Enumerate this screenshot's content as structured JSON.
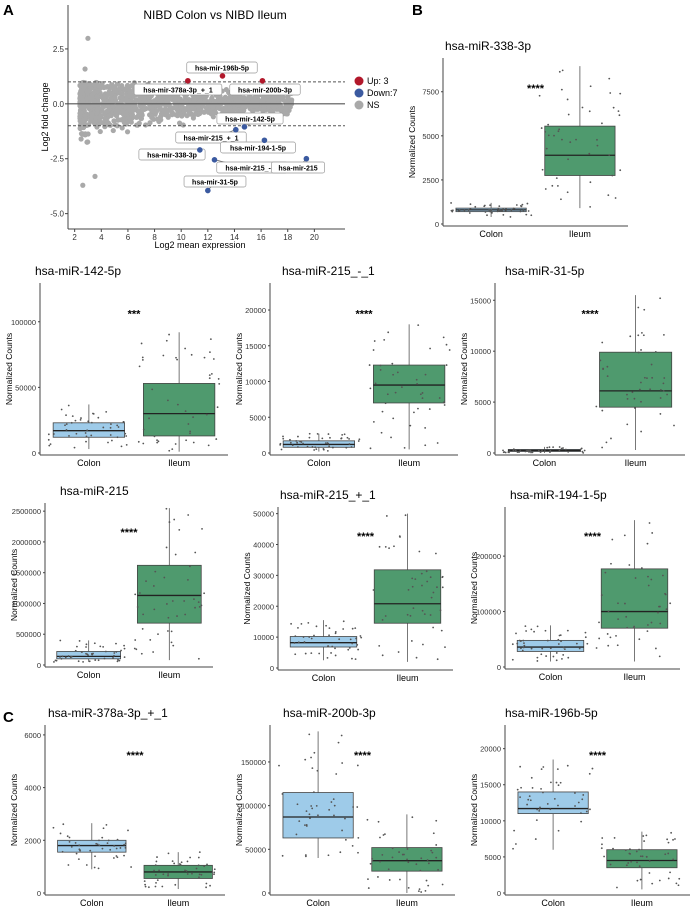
{
  "panel_letters": {
    "a": "A",
    "b": "B",
    "c": "C"
  },
  "colors": {
    "up": "#b2182b",
    "down": "#3b5aa0",
    "ns": "#a9a9a9",
    "colon_box": "#9ecbe9",
    "ileum_box": "#4f9a6e"
  },
  "chart_data": [
    {
      "type": "scatter",
      "title": "NIBD Colon vs NIBD Ileum",
      "xlabel": "Log2 mean expression",
      "ylabel": "Log2 fold change",
      "xlim": [
        1.5,
        22.3
      ],
      "ylim": [
        -5.7,
        4.5
      ],
      "xticks": [
        "2",
        "4",
        "6",
        "8",
        "10",
        "12",
        "14",
        "16",
        "18",
        "20"
      ],
      "yticks": [
        "2.5",
        "0.0",
        "-2.5",
        "-5.0"
      ],
      "threshold_lines": [
        1,
        -1
      ],
      "grid": false,
      "legend_position": "right",
      "legend": [
        {
          "label": "Up: 3",
          "color_key": "up"
        },
        {
          "label": "Down:7",
          "color_key": "down"
        },
        {
          "label": "NS",
          "color_key": "ns"
        }
      ],
      "significant_points": [
        {
          "label": "hsa-mir-378a-3p_+_1",
          "x": 10.5,
          "y": 1.05,
          "status": "up"
        },
        {
          "label": "hsa-mir-196b-5p",
          "x": 13.1,
          "y": 1.27,
          "status": "up"
        },
        {
          "label": "hsa-mir-200b-3p",
          "x": 16.1,
          "y": 1.05,
          "status": "up"
        },
        {
          "label": "hsa-mir-142-5p",
          "x": 14.75,
          "y": -1.05,
          "status": "down"
        },
        {
          "label": "hsa-mir-215_+_1",
          "x": 14.1,
          "y": -1.18,
          "status": "down"
        },
        {
          "label": "hsa-mir-194-1-5p",
          "x": 16.25,
          "y": -1.66,
          "status": "down"
        },
        {
          "label": "hsa-mir-338-3p",
          "x": 11.4,
          "y": -2.1,
          "status": "down"
        },
        {
          "label": "hsa-mir-215_-_1",
          "x": 12.5,
          "y": -2.55,
          "status": "down"
        },
        {
          "label": "hsa-mir-215",
          "x": 19.4,
          "y": -2.5,
          "status": "down"
        },
        {
          "label": "hsa-mir-31-5p",
          "x": 12.0,
          "y": -3.95,
          "status": "down"
        }
      ]
    },
    {
      "type": "box",
      "title": "hsa-miR-338-3p",
      "ylabel": "Normalized Counts",
      "categories": [
        "Colon",
        "Ileum"
      ],
      "ylim": [
        0,
        9300
      ],
      "yticks": [
        0,
        2500,
        5000,
        7500
      ],
      "significance": "****",
      "boxes": [
        {
          "q1": 700,
          "median": 800,
          "q3": 900,
          "low": 400,
          "high": 1200
        },
        {
          "q1": 2750,
          "median": 3900,
          "q3": 5550,
          "low": 900,
          "high": 8950
        }
      ]
    },
    {
      "type": "box",
      "title": "hsa-miR-142-5p",
      "ylabel": "Normalized Counts",
      "categories": [
        "Colon",
        "Ileum"
      ],
      "ylim": [
        0,
        128000
      ],
      "yticks": [
        0,
        50000,
        100000
      ],
      "significance": "***",
      "boxes": [
        {
          "q1": 12000,
          "median": 17000,
          "q3": 23000,
          "low": 3000,
          "high": 37000
        },
        {
          "q1": 13000,
          "median": 30000,
          "q3": 53000,
          "low": 1000,
          "high": 92000
        }
      ]
    },
    {
      "type": "box",
      "title": "hsa-miR-215_-_1",
      "ylabel": "Normalized Counts",
      "categories": [
        "Colon",
        "Ileum"
      ],
      "ylim": [
        0,
        23500
      ],
      "yticks": [
        0,
        5000,
        10000,
        15000,
        20000
      ],
      "significance": "****",
      "boxes": [
        {
          "q1": 800,
          "median": 1200,
          "q3": 1700,
          "low": 200,
          "high": 2700
        },
        {
          "q1": 7000,
          "median": 9500,
          "q3": 12300,
          "low": 500,
          "high": 18000
        }
      ]
    },
    {
      "type": "box",
      "title": "hsa-miR-31-5p",
      "ylabel": "Normalized Counts",
      "categories": [
        "Colon",
        "Ileum"
      ],
      "ylim": [
        0,
        16500
      ],
      "yticks": [
        0,
        5000,
        10000,
        15000
      ],
      "significance": "****",
      "boxes": [
        {
          "q1": 150,
          "median": 250,
          "q3": 350,
          "low": 0,
          "high": 600
        },
        {
          "q1": 4500,
          "median": 6100,
          "q3": 9900,
          "low": 300,
          "high": 15500
        }
      ]
    },
    {
      "type": "box",
      "title": "hsa-miR-215",
      "ylabel": "Normalized Counts",
      "categories": [
        "Colon",
        "Ileum"
      ],
      "ylim": [
        0,
        2600000
      ],
      "yticks": [
        0,
        500000,
        1000000,
        1500000,
        2000000,
        2500000
      ],
      "significance": "****",
      "boxes": [
        {
          "q1": 100000,
          "median": 140000,
          "q3": 220000,
          "low": 50000,
          "high": 400000
        },
        {
          "q1": 680000,
          "median": 1130000,
          "q3": 1620000,
          "low": 80000,
          "high": 2550000
        }
      ]
    },
    {
      "type": "box",
      "title": "hsa-miR-215_+_1",
      "ylabel": "Normalized Counts",
      "categories": [
        "Colon",
        "Ileum"
      ],
      "ylim": [
        0,
        51500
      ],
      "yticks": [
        0,
        10000,
        20000,
        30000,
        40000,
        50000
      ],
      "significance": "****",
      "boxes": [
        {
          "q1": 6800,
          "median": 8200,
          "q3": 10200,
          "low": 2500,
          "high": 15500
        },
        {
          "q1": 14500,
          "median": 20800,
          "q3": 31800,
          "low": 2000,
          "high": 50000
        }
      ]
    },
    {
      "type": "box",
      "title": "hsa-miR-194-1-5p",
      "ylabel": "Normalized Counts",
      "categories": [
        "Colon",
        "Ileum"
      ],
      "ylim": [
        0,
        285000
      ],
      "yticks": [
        0,
        100000,
        200000
      ],
      "significance": "****",
      "boxes": [
        {
          "q1": 28000,
          "median": 36000,
          "q3": 48000,
          "low": 10000,
          "high": 75000
        },
        {
          "q1": 70000,
          "median": 100000,
          "q3": 177000,
          "low": 10000,
          "high": 265000
        }
      ]
    },
    {
      "type": "box",
      "title": "hsa-miR-378a-3p_+_1",
      "ylabel": "Normalized Counts",
      "categories": [
        "Colon",
        "Ileum"
      ],
      "ylim": [
        0,
        6300
      ],
      "yticks": [
        0,
        2000,
        4000,
        6000
      ],
      "significance": "****",
      "boxes": [
        {
          "q1": 1550,
          "median": 1800,
          "q3": 2000,
          "low": 900,
          "high": 2650
        },
        {
          "q1": 550,
          "median": 800,
          "q3": 1050,
          "low": 150,
          "high": 1550
        }
      ]
    },
    {
      "type": "box",
      "title": "hsa-miR-200b-3p",
      "ylabel": "Normalized Counts",
      "categories": [
        "Colon",
        "Ileum"
      ],
      "ylim": [
        0,
        190000
      ],
      "yticks": [
        0,
        50000,
        100000,
        150000
      ],
      "significance": "****",
      "boxes": [
        {
          "q1": 63000,
          "median": 87000,
          "q3": 115000,
          "low": 40000,
          "high": 185000
        },
        {
          "q1": 25000,
          "median": 37000,
          "q3": 52000,
          "low": 0,
          "high": 90000
        }
      ]
    },
    {
      "type": "box",
      "title": "hsa-miR-196b-5p",
      "ylabel": "Normalized Counts",
      "categories": [
        "Colon",
        "Ileum"
      ],
      "ylim": [
        0,
        23000
      ],
      "yticks": [
        0,
        5000,
        10000,
        15000,
        20000
      ],
      "significance": "****",
      "boxes": [
        {
          "q1": 11000,
          "median": 11700,
          "q3": 14000,
          "low": 6000,
          "high": 18500
        },
        {
          "q1": 3500,
          "median": 4500,
          "q3": 6000,
          "low": 500,
          "high": 8500
        }
      ]
    }
  ]
}
